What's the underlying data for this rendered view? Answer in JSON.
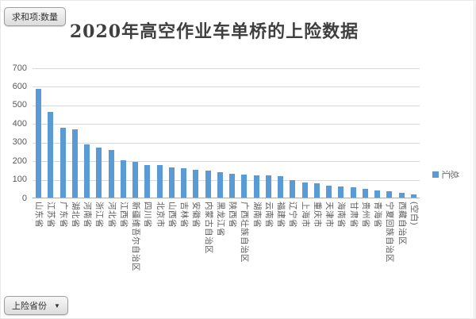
{
  "pivot": {
    "value_field_button": "求和项:数量",
    "axis_field_button": "上险省份",
    "dropdown_icon": "▼"
  },
  "chart_data": {
    "type": "bar",
    "title": "2020年高空作业车单桥的上险数据",
    "series_name": "汇总",
    "legend_position": "right",
    "grid": true,
    "ylim": [
      0,
      700
    ],
    "yticks": [
      0,
      100,
      200,
      300,
      400,
      500,
      600,
      700
    ],
    "xlabel": "",
    "ylabel": "",
    "categories": [
      "山东省",
      "江苏省",
      "广东省",
      "湖北省",
      "河南省",
      "浙江省",
      "河北省",
      "江西省",
      "新疆维吾尔自治区",
      "四川省",
      "北京市",
      "山西省",
      "吉林省",
      "安徽省",
      "内蒙古自治区",
      "黑龙江省",
      "陕西省",
      "广西壮族自治区",
      "湖南省",
      "云南省",
      "福建省",
      "辽宁省",
      "上海市",
      "重庆市",
      "天津市",
      "海南省",
      "甘肃省",
      "贵州省",
      "青海省",
      "宁夏回族自治区",
      "西藏自治区",
      "(空白)"
    ],
    "values": [
      585,
      460,
      377,
      367,
      284,
      270,
      257,
      201,
      194,
      176,
      173,
      163,
      160,
      150,
      147,
      136,
      127,
      123,
      121,
      118,
      117,
      94,
      83,
      78,
      65,
      58,
      55,
      45,
      37,
      33,
      25,
      15
    ]
  },
  "colors": {
    "bar": "#5B9BD5",
    "gridline": "#D9D9D9",
    "axis_line": "#ADADAD",
    "tick_text": "#595959",
    "title_text": "#3F3F3F"
  }
}
